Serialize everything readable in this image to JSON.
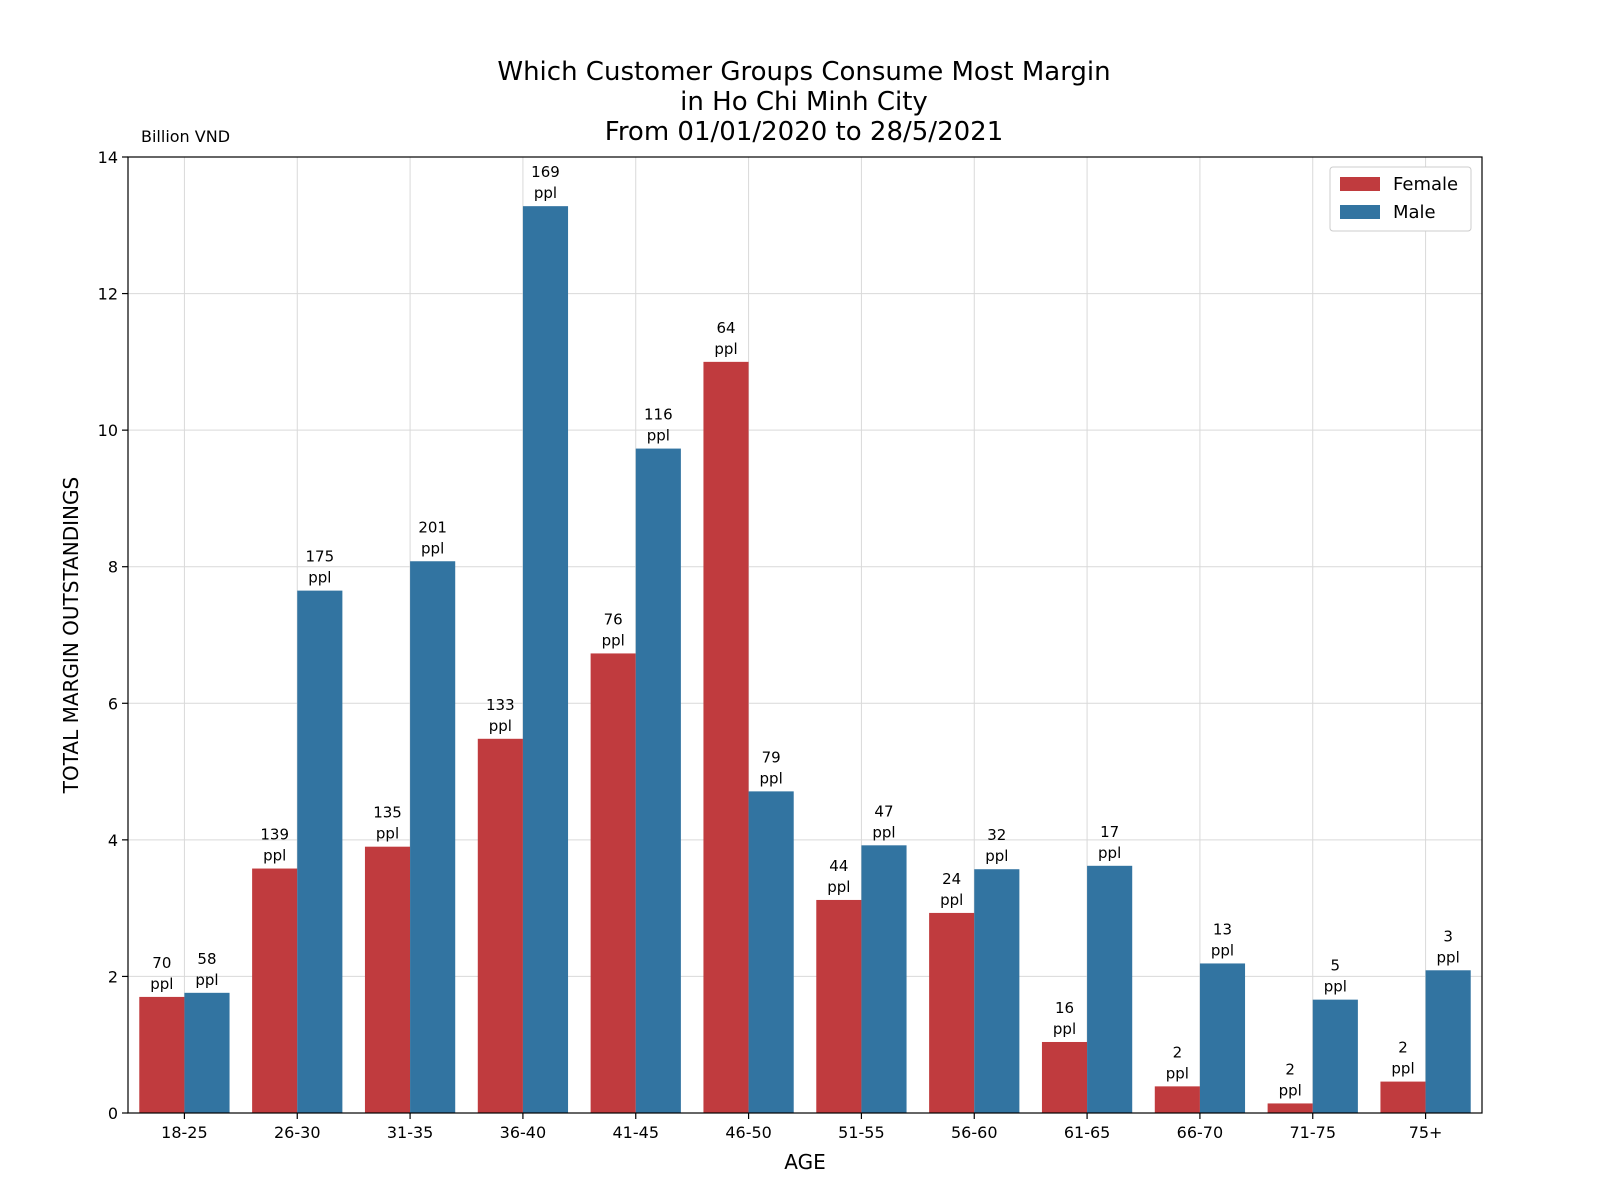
{
  "chart_data": {
    "type": "bar",
    "title": [
      "Which Customer Groups Consume Most Margin",
      "in Ho Chi Minh City",
      "From 01/01/2020 to 28/5/2021"
    ],
    "unit_label": "Billion VND",
    "xlabel": "AGE",
    "ylabel": "TOTAL MARGIN OUTSTANDINGS",
    "ylim": [
      0,
      14
    ],
    "yticks": [
      "0",
      "2",
      "4",
      "6",
      "8",
      "10",
      "12",
      "14"
    ],
    "grid": true,
    "legend_position": "top-right",
    "label_suffix": "ppl",
    "categories": [
      "18-25",
      "26-30",
      "31-35",
      "36-40",
      "41-45",
      "46-50",
      "51-55",
      "56-60",
      "61-65",
      "66-70",
      "71-75",
      "75+"
    ],
    "series": [
      {
        "name": "Female",
        "color": "#c03b3e",
        "values": [
          1.7,
          3.58,
          3.9,
          5.48,
          6.73,
          11.0,
          3.12,
          2.93,
          1.04,
          0.39,
          0.14,
          0.46
        ],
        "labels": [
          "70",
          "139",
          "135",
          "133",
          "76",
          "64",
          "44",
          "24",
          "16",
          "2",
          "2",
          "2"
        ]
      },
      {
        "name": "Male",
        "color": "#3274a1",
        "values": [
          1.76,
          7.65,
          8.08,
          13.28,
          9.73,
          4.71,
          3.92,
          3.57,
          3.62,
          2.19,
          1.66,
          2.09
        ],
        "labels": [
          "58",
          "175",
          "201",
          "169",
          "116",
          "79",
          "47",
          "32",
          "17",
          "13",
          "5",
          "3"
        ]
      }
    ]
  }
}
